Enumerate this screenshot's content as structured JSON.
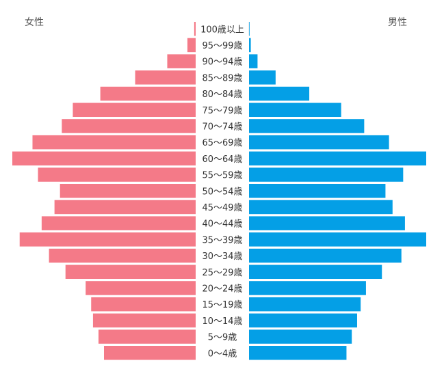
{
  "chart_data": {
    "type": "bar",
    "layout": "population-pyramid",
    "left_label": "女性",
    "right_label": "男性",
    "colors": {
      "female": "#F47A88",
      "male": "#049FE6"
    },
    "x_max": 100,
    "categories": [
      "100歳以上",
      "95〜99歳",
      "90〜94歳",
      "85〜89歳",
      "80〜84歳",
      "75〜79歳",
      "70〜74歳",
      "65〜69歳",
      "60〜64歳",
      "55〜59歳",
      "50〜54歳",
      "45〜49歳",
      "40〜44歳",
      "35〜39歳",
      "30〜34歳",
      "25〜29歳",
      "20〜24歳",
      "15〜19歳",
      "10〜14歳",
      "5〜9歳",
      "0〜4歳"
    ],
    "series": [
      {
        "name": "女性",
        "values": [
          0.8,
          4.5,
          15.5,
          33,
          52,
          67,
          73,
          89,
          100,
          86,
          74,
          77,
          84,
          96,
          80,
          71,
          60,
          57,
          56,
          53,
          50
        ]
      },
      {
        "name": "男性",
        "values": [
          0.3,
          1.0,
          4.8,
          15,
          34,
          52,
          65,
          79,
          100,
          87,
          77,
          81,
          88,
          100,
          86,
          75,
          66,
          63,
          61,
          58,
          55
        ]
      }
    ]
  }
}
